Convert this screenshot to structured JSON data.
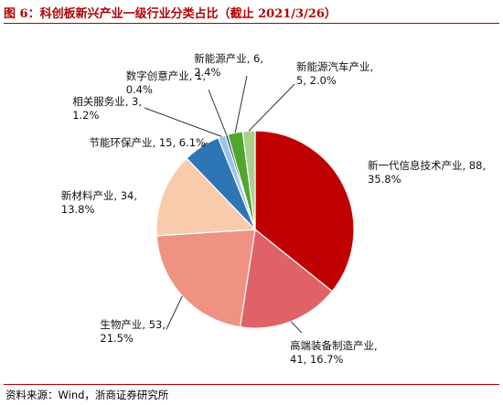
{
  "title": "图 6：科创板新兴产业一级行业分类占比（截止 2021/3/26）",
  "source": "资料来源：Wind，浙商证券研究所",
  "chart_data": {
    "type": "pie",
    "title": "图 6：科创板新兴产业一级行业分类占比（截止 2021/3/26）",
    "slices": [
      {
        "name": "新一代信息技术产业",
        "count": 88,
        "percent": 35.8,
        "color": "#c00000",
        "label_line1": "新一代信息技术产业, 88,",
        "label_line2": "35.8%"
      },
      {
        "name": "高端装备制造产业",
        "count": 41,
        "percent": 16.7,
        "color": "#e06266",
        "label_line1": "高端装备制造产业,",
        "label_line2": "41, 16.7%"
      },
      {
        "name": "生物产业",
        "count": 53,
        "percent": 21.5,
        "color": "#f09283",
        "label_line1": "生物产业, 53,",
        "label_line2": "21.5%"
      },
      {
        "name": "新材料产业",
        "count": 34,
        "percent": 13.8,
        "color": "#f8cbad",
        "label_line1": "新材料产业, 34,",
        "label_line2": "13.8%"
      },
      {
        "name": "节能环保产业",
        "count": 15,
        "percent": 6.1,
        "color": "#2e75b6",
        "label_line1": "节能环保产业, 15, 6.1%",
        "label_line2": ""
      },
      {
        "name": "相关服务业",
        "count": 3,
        "percent": 1.2,
        "color": "#9dc3e6",
        "label_line1": "相关服务业, 3,",
        "label_line2": "1.2%"
      },
      {
        "name": "数字创意产业",
        "count": 1,
        "percent": 0.4,
        "color": "#203864",
        "label_line1": "数字创意产业, 1,",
        "label_line2": "0.4%"
      },
      {
        "name": "新能源产业",
        "count": 6,
        "percent": 2.4,
        "color": "#4ea72e",
        "label_line1": "新能源产业, 6,",
        "label_line2": "2.4%"
      },
      {
        "name": "新能源汽车产业",
        "count": 5,
        "percent": 2.0,
        "color": "#a9d18e",
        "label_line1": "新能源汽车产业,",
        "label_line2": "5, 2.0%"
      }
    ]
  }
}
